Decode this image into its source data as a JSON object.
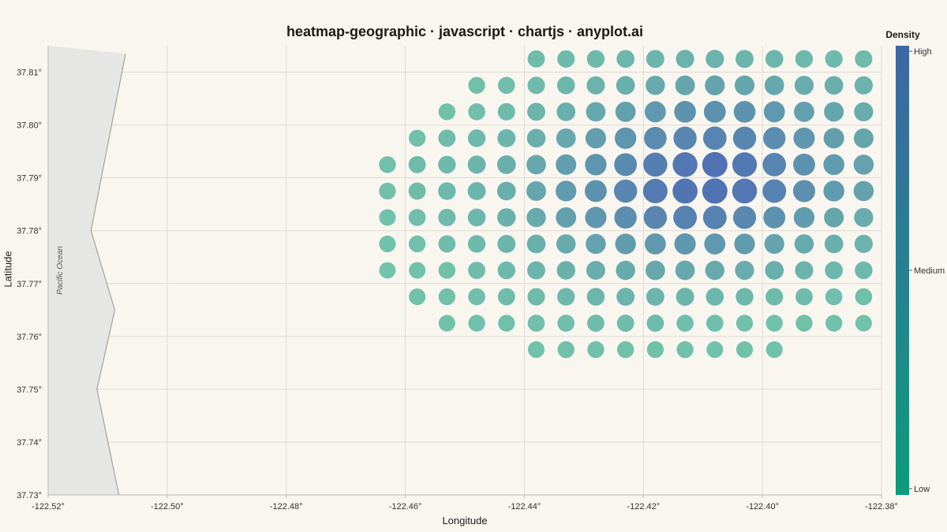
{
  "chart_data": {
    "type": "heatmap",
    "title": "heatmap-geographic · javascript · chartjs · anyplot.ai",
    "xlabel": "Longitude",
    "ylabel": "Latitude",
    "xlim": [
      -122.52,
      -122.38
    ],
    "ylim": [
      37.73,
      37.815
    ],
    "x_ticks": [
      "-122.52°",
      "-122.50°",
      "-122.48°",
      "-122.46°",
      "-122.44°",
      "-122.42°",
      "-122.40°",
      "-122.38°"
    ],
    "y_ticks": [
      "37.73°",
      "37.74°",
      "37.75°",
      "37.76°",
      "37.77°",
      "37.78°",
      "37.79°",
      "37.80°",
      "37.81°"
    ],
    "grid": true,
    "annotation": "Pacific Ocean",
    "coastline": [
      [
        -122.507,
        37.8135
      ],
      [
        -122.5128,
        37.78
      ],
      [
        -122.5088,
        37.765
      ],
      [
        -122.5118,
        37.75
      ],
      [
        -122.5081,
        37.73
      ]
    ],
    "colorbar": {
      "title": "Density",
      "labels": [
        "High",
        "Medium",
        "Low"
      ],
      "color_high": "#3F67A4",
      "color_low": "#0E9B7B",
      "placement": "right"
    },
    "point_color_low": "#72C4AA",
    "point_color_high": "#5073B3",
    "lon": [
      -122.463,
      -122.458,
      -122.453,
      -122.448,
      -122.443,
      -122.438,
      -122.433,
      -122.428,
      -122.423,
      -122.418,
      -122.413,
      -122.408,
      -122.403,
      -122.398,
      -122.393,
      -122.388,
      -122.383
    ],
    "rows": [
      {
        "lat": 37.8125,
        "start": 5,
        "d": [
          0.22,
          0.24,
          0.26,
          0.28,
          0.3,
          0.32,
          0.32,
          0.3,
          0.28,
          0.26,
          0.25,
          0.24
        ]
      },
      {
        "lat": 37.8075,
        "start": 3,
        "d": [
          0.18,
          0.2,
          0.24,
          0.28,
          0.32,
          0.36,
          0.42,
          0.46,
          0.48,
          0.47,
          0.44,
          0.4,
          0.36,
          0.32
        ]
      },
      {
        "lat": 37.8025,
        "start": 2,
        "d": [
          0.18,
          0.2,
          0.24,
          0.3,
          0.36,
          0.44,
          0.52,
          0.6,
          0.66,
          0.68,
          0.66,
          0.6,
          0.52,
          0.46,
          0.4
        ]
      },
      {
        "lat": 37.7975,
        "start": 1,
        "d": [
          0.18,
          0.22,
          0.26,
          0.3,
          0.36,
          0.44,
          0.54,
          0.64,
          0.74,
          0.8,
          0.82,
          0.8,
          0.72,
          0.62,
          0.54,
          0.46
        ]
      },
      {
        "lat": 37.7925,
        "start": 0,
        "d": [
          0.18,
          0.22,
          0.26,
          0.3,
          0.36,
          0.44,
          0.54,
          0.64,
          0.76,
          0.88,
          0.96,
          1.0,
          0.94,
          0.82,
          0.68,
          0.58,
          0.5
        ]
      },
      {
        "lat": 37.7875,
        "start": 0,
        "d": [
          0.18,
          0.22,
          0.26,
          0.3,
          0.36,
          0.46,
          0.56,
          0.68,
          0.8,
          0.92,
          0.98,
          1.0,
          0.96,
          0.84,
          0.7,
          0.58,
          0.5
        ]
      },
      {
        "lat": 37.7825,
        "start": 0,
        "d": [
          0.16,
          0.2,
          0.24,
          0.28,
          0.34,
          0.42,
          0.52,
          0.62,
          0.72,
          0.8,
          0.84,
          0.84,
          0.78,
          0.68,
          0.56,
          0.46,
          0.4
        ]
      },
      {
        "lat": 37.7775,
        "start": 0,
        "d": [
          0.16,
          0.18,
          0.22,
          0.26,
          0.3,
          0.36,
          0.42,
          0.5,
          0.56,
          0.6,
          0.62,
          0.6,
          0.56,
          0.48,
          0.42,
          0.36,
          0.32
        ]
      },
      {
        "lat": 37.7725,
        "start": 0,
        "d": [
          0.14,
          0.16,
          0.18,
          0.22,
          0.26,
          0.3,
          0.34,
          0.38,
          0.42,
          0.44,
          0.44,
          0.42,
          0.4,
          0.36,
          0.32,
          0.28,
          0.26
        ]
      },
      {
        "lat": 37.7675,
        "start": 1,
        "d": [
          0.16,
          0.18,
          0.2,
          0.22,
          0.24,
          0.26,
          0.28,
          0.3,
          0.3,
          0.3,
          0.28,
          0.26,
          0.24,
          0.22,
          0.2,
          0.2
        ]
      },
      {
        "lat": 37.7625,
        "start": 2,
        "d": [
          0.16,
          0.18,
          0.18,
          0.2,
          0.2,
          0.22,
          0.22,
          0.22,
          0.2,
          0.2,
          0.18,
          0.18,
          0.18,
          0.18,
          0.16
        ]
      },
      {
        "lat": 37.7575,
        "start": 5,
        "d": [
          0.16,
          0.18,
          0.18,
          0.18,
          0.18,
          0.18,
          0.16,
          0.16,
          0.16
        ]
      }
    ]
  }
}
